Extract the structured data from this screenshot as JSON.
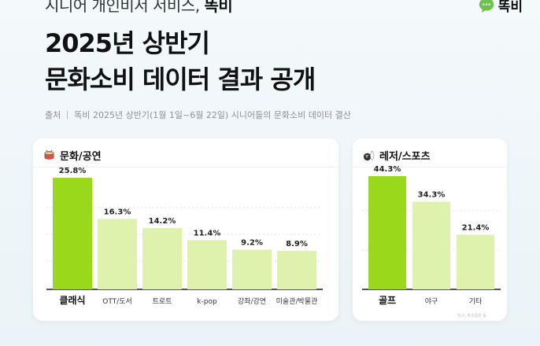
{
  "header": {
    "service_text": "시니어 개인비서 서비스, ",
    "service_brand": "똑비",
    "brand_name": "똑비",
    "title_line1": "2025년 상반기",
    "title_line2": "문화소비 데이터 결과 공개",
    "source_label": "출처",
    "source_text": "똑비 2025년 상반기(1월 1일~6월 22일) 시니어들의 문화소비 데이터 결산"
  },
  "colors": {
    "highlight": "#9ad81b",
    "bar": "#def2ae",
    "brand_green": "#6cc24a"
  },
  "chart_data": [
    {
      "type": "bar",
      "title": "문화/공연",
      "icon": "drum-icon",
      "categories": [
        "클래식",
        "OTT/도서",
        "트로트",
        "k-pop",
        "강좌/강연",
        "미술관/박물관"
      ],
      "values": [
        25.8,
        16.3,
        14.2,
        11.4,
        9.2,
        8.9
      ],
      "labels": [
        "25.8%",
        "16.3%",
        "14.2%",
        "11.4%",
        "9.2%",
        "8.9%"
      ],
      "highlight_index": 0,
      "grid": true
    },
    {
      "type": "bar",
      "title": "레저/스포츠",
      "icon": "bowling-icon",
      "categories": [
        "골프",
        "야구",
        "기타"
      ],
      "values": [
        44.3,
        34.3,
        21.4
      ],
      "labels": [
        "44.3%",
        "34.3%",
        "21.4%"
      ],
      "highlight_index": 0,
      "grid": true,
      "footnote": "당구, 파크골프 등"
    }
  ]
}
